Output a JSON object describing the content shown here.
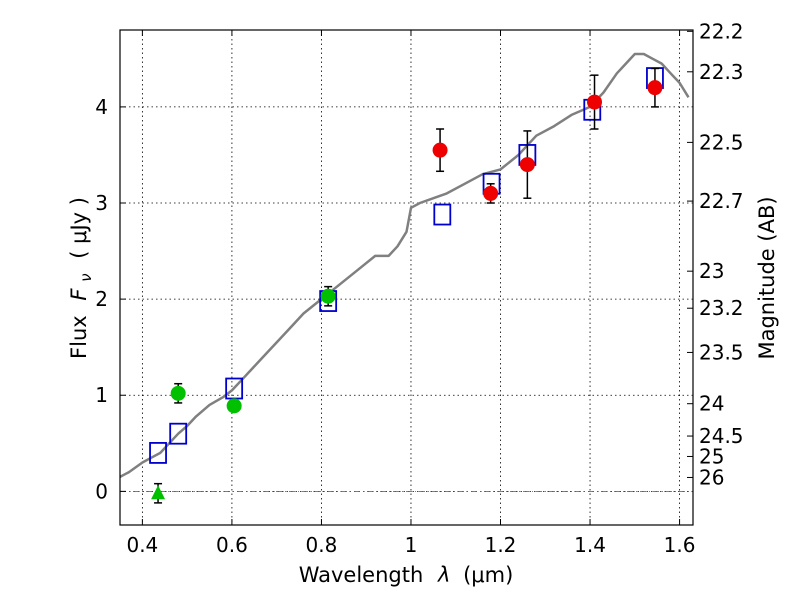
{
  "chart_data": {
    "type": "scatter",
    "xlabel": {
      "prefix": "Wavelength",
      "symbol": "λ",
      "units": "(μm)"
    },
    "ylabel": {
      "prefix": "Flux",
      "symbol": "F",
      "subscript": "ν",
      "units": "( μJy )"
    },
    "ylabel_right": "Magnitude (AB)",
    "xlim": [
      0.35,
      1.63
    ],
    "ylim": [
      -0.35,
      4.8
    ],
    "xticks": [
      {
        "value": 0.4,
        "label": "0.4"
      },
      {
        "value": 0.6,
        "label": "0.6"
      },
      {
        "value": 0.8,
        "label": "0.8"
      },
      {
        "value": 1.0,
        "label": "1"
      },
      {
        "value": 1.2,
        "label": "1.2"
      },
      {
        "value": 1.4,
        "label": "1.4"
      },
      {
        "value": 1.6,
        "label": "1.6"
      }
    ],
    "yticks": [
      {
        "value": 0,
        "label": "0"
      },
      {
        "value": 1,
        "label": "1"
      },
      {
        "value": 2,
        "label": "2"
      },
      {
        "value": 3,
        "label": "3"
      },
      {
        "value": 4,
        "label": "4"
      }
    ],
    "right_ticks": [
      {
        "label": "22.2",
        "mag": 22.2
      },
      {
        "label": "22.3",
        "mag": 22.3
      },
      {
        "label": "22.5",
        "mag": 22.5
      },
      {
        "label": "22.7",
        "mag": 22.7
      },
      {
        "label": "23",
        "mag": 23.0
      },
      {
        "label": "23.2",
        "mag": 23.2
      },
      {
        "label": "23.5",
        "mag": 23.5
      },
      {
        "label": "24",
        "mag": 24.0
      },
      {
        "label": "24.5",
        "mag": 24.5
      },
      {
        "label": "25",
        "mag": 25.0
      },
      {
        "label": "26",
        "mag": 26.0
      }
    ],
    "grid": true,
    "series": [
      {
        "name": "model-spectrum",
        "kind": "line",
        "color": "#808080",
        "x": [
          0.35,
          0.37,
          0.4,
          0.42,
          0.44,
          0.46,
          0.48,
          0.5,
          0.52,
          0.55,
          0.58,
          0.6,
          0.62,
          0.65,
          0.68,
          0.7,
          0.73,
          0.76,
          0.8,
          0.84,
          0.88,
          0.92,
          0.95,
          0.97,
          0.99,
          1.0,
          1.02,
          1.05,
          1.08,
          1.12,
          1.16,
          1.2,
          1.24,
          1.28,
          1.32,
          1.36,
          1.4,
          1.43,
          1.46,
          1.48,
          1.5,
          1.52,
          1.54,
          1.56,
          1.58,
          1.6,
          1.62
        ],
        "y": [
          0.15,
          0.2,
          0.3,
          0.35,
          0.4,
          0.5,
          0.6,
          0.68,
          0.78,
          0.9,
          0.98,
          1.05,
          1.15,
          1.3,
          1.45,
          1.55,
          1.7,
          1.85,
          2.0,
          2.15,
          2.3,
          2.45,
          2.45,
          2.55,
          2.7,
          2.95,
          3.0,
          3.05,
          3.1,
          3.2,
          3.3,
          3.35,
          3.5,
          3.7,
          3.8,
          3.92,
          4.0,
          4.15,
          4.35,
          4.45,
          4.55,
          4.55,
          4.5,
          4.45,
          4.35,
          4.25,
          4.1
        ]
      },
      {
        "name": "model-bandpass",
        "kind": "open-square",
        "color": "#0000cc",
        "x": [
          0.435,
          0.48,
          0.605,
          0.815,
          1.07,
          1.18,
          1.26,
          1.405,
          1.545
        ],
        "y": [
          0.4,
          0.6,
          1.07,
          1.98,
          2.88,
          3.2,
          3.5,
          3.97,
          4.3
        ]
      },
      {
        "name": "optical-detections",
        "kind": "filled-circle",
        "color": "#00c000",
        "points": [
          {
            "x": 0.48,
            "y": 1.02,
            "err": 0.1
          },
          {
            "x": 0.605,
            "y": 0.89,
            "err": 0.05
          },
          {
            "x": 0.815,
            "y": 2.03,
            "err": 0.1
          }
        ]
      },
      {
        "name": "upper-limit",
        "kind": "filled-triangle",
        "color": "#00c000",
        "points": [
          {
            "x": 0.435,
            "y": -0.02,
            "err": 0.1
          }
        ]
      },
      {
        "name": "nir-detections",
        "kind": "filled-circle",
        "color": "#ee0000",
        "points": [
          {
            "x": 1.065,
            "y": 3.55,
            "err": 0.22
          },
          {
            "x": 1.178,
            "y": 3.1,
            "err": 0.1
          },
          {
            "x": 1.26,
            "y": 3.4,
            "err": 0.35
          },
          {
            "x": 1.41,
            "y": 4.05,
            "err": 0.28
          },
          {
            "x": 1.545,
            "y": 4.2,
            "err": 0.2
          }
        ]
      }
    ]
  }
}
